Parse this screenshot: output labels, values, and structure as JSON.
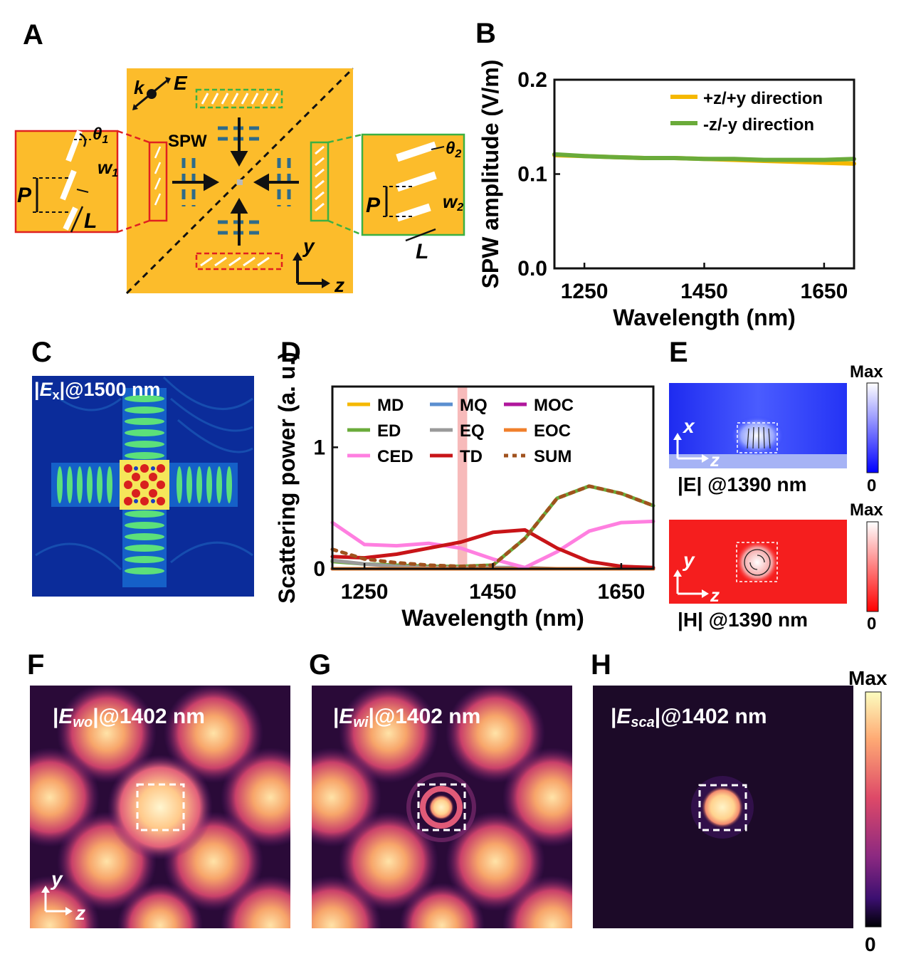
{
  "panels": {
    "A": "A",
    "B": "B",
    "C": "C",
    "D": "D",
    "E": "E",
    "F": "F",
    "G": "G",
    "H": "H"
  },
  "colors": {
    "gold": "#FCBC2B",
    "red_box": "#E02020",
    "green_box": "#3CB043",
    "dash_blue": "#2E6B8A",
    "plus_dir": "#F5B800",
    "minus_dir": "#6AAB3A"
  },
  "panel_a": {
    "k": "k",
    "E": "E",
    "SPW": "SPW",
    "theta1": "θ",
    "theta1_sub": "1",
    "w1": "w",
    "w1_sub": "1",
    "P_left": "P",
    "L_left": "L",
    "theta2": "θ",
    "theta2_sub": "2",
    "w2": "w",
    "w2_sub": "2",
    "P_right": "P",
    "L_right": "L",
    "axis_y": "y",
    "axis_z": "z"
  },
  "chart_data": [
    {
      "id": "B",
      "type": "line",
      "xlabel": "Wavelength (nm)",
      "ylabel": "SPW amplitude (V/m)",
      "xlim": [
        1200,
        1700
      ],
      "ylim": [
        0.0,
        0.2
      ],
      "xticks": [
        "1250",
        "1450",
        "1650"
      ],
      "yticks": [
        "0.0",
        "0.1",
        "0.2"
      ],
      "legend_position": "top-right",
      "x": [
        1200,
        1250,
        1300,
        1350,
        1400,
        1450,
        1500,
        1550,
        1600,
        1650,
        1700
      ],
      "series": [
        {
          "name": "+z/+y direction",
          "color": "#F5B800",
          "values": [
            0.12,
            0.119,
            0.118,
            0.117,
            0.117,
            0.116,
            0.115,
            0.114,
            0.113,
            0.112,
            0.111
          ]
        },
        {
          "name": "-z/-y direction",
          "color": "#6AAB3A",
          "values": [
            0.121,
            0.119,
            0.118,
            0.117,
            0.117,
            0.116,
            0.116,
            0.115,
            0.115,
            0.115,
            0.116
          ]
        }
      ]
    },
    {
      "id": "D",
      "type": "line",
      "xlabel": "Wavelength (nm)",
      "ylabel": "Scattering power (a. u.)",
      "xlim": [
        1200,
        1700
      ],
      "ylim": [
        0,
        1.5
      ],
      "xticks": [
        "1250",
        "1450",
        "1650"
      ],
      "yticks": [
        "0",
        "1"
      ],
      "legend_position": "top, three columns",
      "highlight_band": [
        1395,
        1410
      ],
      "x": [
        1200,
        1250,
        1300,
        1350,
        1400,
        1450,
        1500,
        1550,
        1600,
        1650,
        1700
      ],
      "series": [
        {
          "name": "MD",
          "color": "#F5B800",
          "values": [
            0,
            0,
            0,
            0,
            0,
            0,
            0,
            0,
            0,
            0,
            0
          ]
        },
        {
          "name": "MQ",
          "color": "#5B8FD0",
          "values": [
            0,
            0,
            0,
            0,
            0,
            0,
            0,
            0,
            0,
            0,
            0
          ]
        },
        {
          "name": "MOC",
          "color": "#B0179C",
          "values": [
            0,
            0,
            0,
            0,
            0,
            0,
            0,
            0,
            0,
            0,
            0
          ]
        },
        {
          "name": "ED",
          "color": "#6AAB3A",
          "values": [
            0.06,
            0.04,
            0.03,
            0.02,
            0.02,
            0.03,
            0.25,
            0.58,
            0.68,
            0.62,
            0.52
          ]
        },
        {
          "name": "EQ",
          "color": "#9A9A9A",
          "values": [
            0.07,
            0.04,
            0.02,
            0.01,
            0.01,
            0.01,
            0.01,
            0,
            0,
            0,
            0
          ]
        },
        {
          "name": "EOC",
          "color": "#F07F2B",
          "values": [
            0,
            0,
            0,
            0,
            0,
            0,
            0,
            0,
            0,
            0,
            0
          ]
        },
        {
          "name": "CED",
          "color": "#FF7FE0",
          "values": [
            0.38,
            0.2,
            0.19,
            0.21,
            0.17,
            0.08,
            0.01,
            0.14,
            0.31,
            0.38,
            0.39
          ]
        },
        {
          "name": "TD",
          "color": "#C81418",
          "values": [
            0.1,
            0.09,
            0.12,
            0.17,
            0.22,
            0.3,
            0.32,
            0.17,
            0.06,
            0.02,
            0.01
          ]
        },
        {
          "name": "SUM",
          "color": "#A0521E",
          "dashed": true,
          "values": [
            0.16,
            0.08,
            0.05,
            0.03,
            0.02,
            0.03,
            0.25,
            0.58,
            0.68,
            0.62,
            0.52
          ]
        }
      ]
    }
  ],
  "panel_c": {
    "label_prefix": "|",
    "label_E": "E",
    "label_sub": "x",
    "label_rest": "|@1500 nm"
  },
  "panel_e": {
    "top_caption": "|E| @1390 nm",
    "bottom_caption": "|H| @1390 nm",
    "axis_x": "x",
    "axis_y": "y",
    "axis_z": "z",
    "cb_max": "Max",
    "cb_zero": "0"
  },
  "panel_f": {
    "pre": "|",
    "E": "E",
    "sub": "wo",
    "rest": "|@1402 nm",
    "axis_y": "y",
    "axis_z": "z"
  },
  "panel_g": {
    "pre": "|",
    "E": "E",
    "sub": "wi",
    "rest": "|@1402 nm"
  },
  "panel_h": {
    "pre": "|",
    "E": "E",
    "sub": "sca",
    "rest": "|@1402 nm",
    "cb_max": "Max",
    "cb_zero": "0"
  }
}
